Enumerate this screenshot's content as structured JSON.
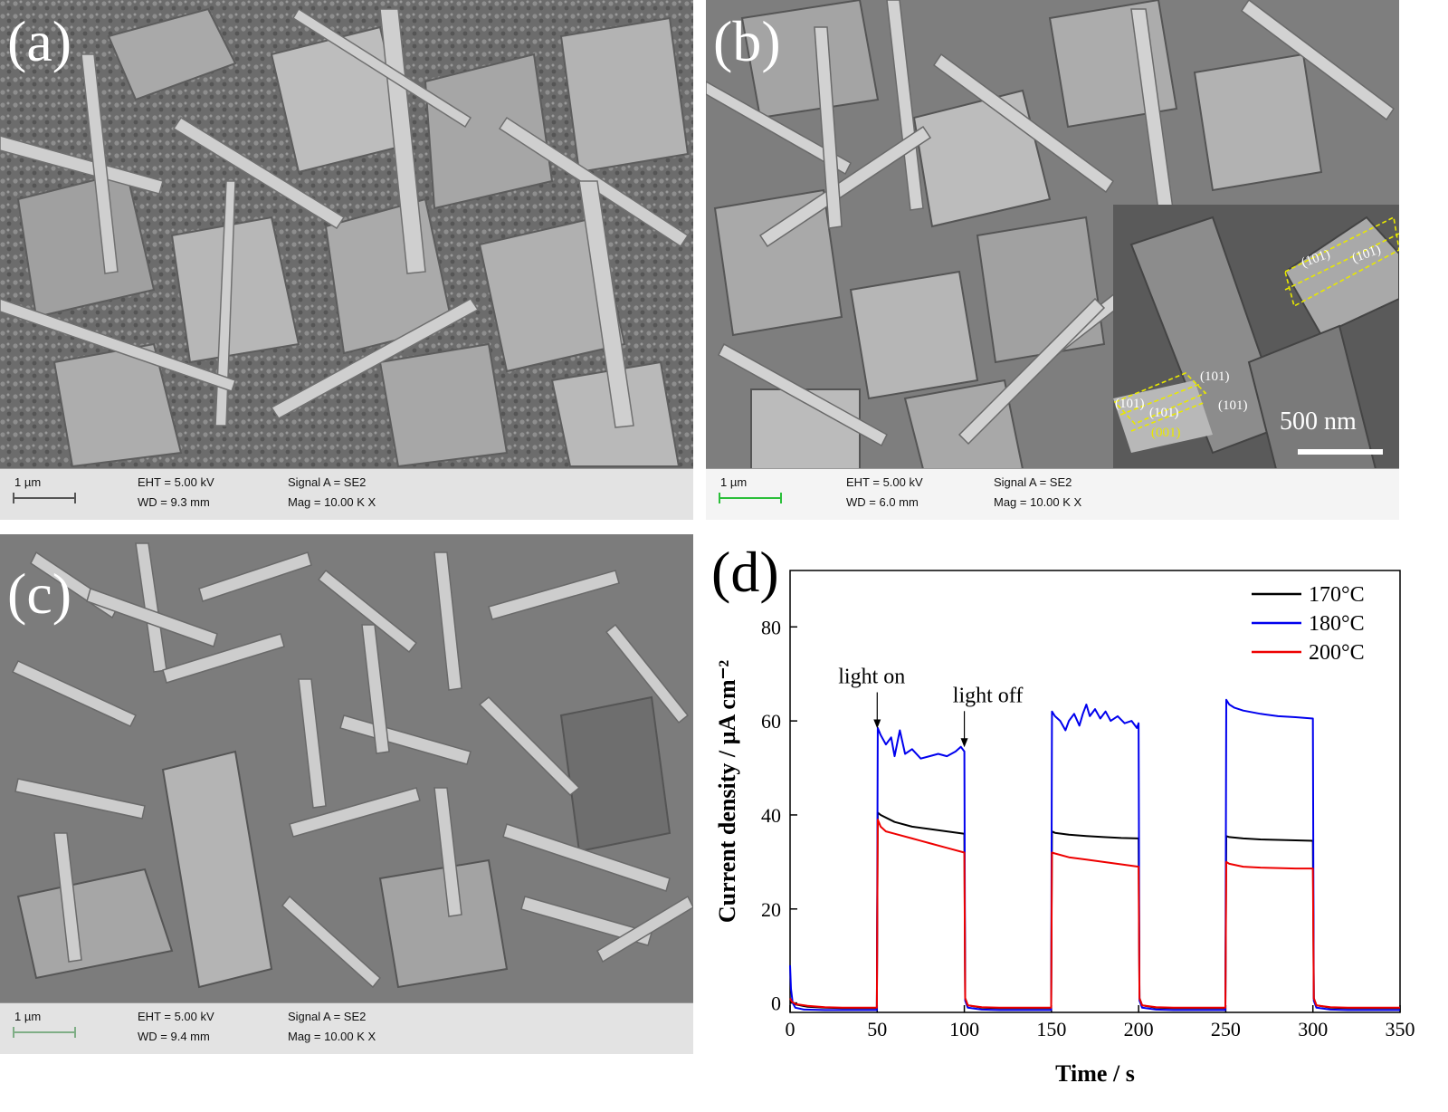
{
  "panels": {
    "a": {
      "label": "(a)",
      "info": {
        "scale": "1 µm",
        "eht": "EHT =  5.00 kV",
        "wd": "WD =  9.3 mm",
        "signal": "Signal A = SE2",
        "mag": "Mag =   10.00 K X"
      }
    },
    "b": {
      "label": "(b)",
      "info": {
        "scale": "1 µm",
        "eht": "EHT =  5.00 kV",
        "wd": "WD =  6.0 mm",
        "signal": "Signal A = SE2",
        "mag": "Mag =   10.00 K X"
      },
      "inset": {
        "scale": "500 nm",
        "facets": [
          "(101)",
          "(101)",
          "(101)",
          "(101)",
          "(101)",
          "(101)",
          "(001)"
        ]
      }
    },
    "c": {
      "label": "(c)",
      "info": {
        "scale": "1 µm",
        "eht": "EHT =  5.00 kV",
        "wd": "WD =  9.4 mm",
        "signal": "Signal A = SE2",
        "mag": "Mag =   10.00 K X"
      }
    },
    "d": {
      "label": "(d)"
    }
  },
  "chart_data": {
    "type": "line",
    "title": "",
    "xlabel": "Time / s",
    "ylabel": "Current density / µA cm⁻²",
    "xlim": [
      0,
      350
    ],
    "ylim": [
      -2,
      92
    ],
    "xticks": [
      0,
      50,
      100,
      150,
      200,
      250,
      300,
      350
    ],
    "yticks": [
      0,
      20,
      40,
      60,
      80
    ],
    "legend_position": "top-right",
    "grid": false,
    "annotations": [
      {
        "text": "light on",
        "x": 50,
        "y": 58
      },
      {
        "text": "light off",
        "x": 100,
        "y": 54
      }
    ],
    "series": [
      {
        "name": "170°C",
        "color": "#000000",
        "x": [
          0,
          1,
          3,
          10,
          20,
          30,
          40,
          49.8,
          50.3,
          52,
          60,
          70,
          80,
          90,
          100,
          100.5,
          102,
          110,
          120,
          130,
          140,
          149.8,
          150.3,
          152,
          160,
          170,
          180,
          190,
          200,
          200.5,
          202,
          210,
          220,
          230,
          240,
          249.8,
          250.3,
          252,
          260,
          270,
          280,
          290,
          300,
          300.5,
          302,
          310,
          320,
          330,
          340,
          350
        ],
        "y": [
          0.5,
          0.2,
          -0.3,
          -0.8,
          -1.0,
          -1.1,
          -1.1,
          -1.1,
          40.5,
          40.0,
          38.5,
          37.5,
          37.0,
          36.5,
          36.0,
          1.0,
          -0.5,
          -1.0,
          -1.1,
          -1.1,
          -1.1,
          -1.1,
          36.5,
          36.2,
          35.8,
          35.5,
          35.3,
          35.1,
          35.0,
          1.0,
          -0.5,
          -1.0,
          -1.1,
          -1.1,
          -1.1,
          -1.1,
          35.5,
          35.3,
          35.0,
          34.8,
          34.7,
          34.6,
          34.5,
          1.0,
          -0.5,
          -1.0,
          -1.1,
          -1.1,
          -1.1,
          -1.1
        ]
      },
      {
        "name": "180°C",
        "color": "#0000ee",
        "x": [
          0,
          0.5,
          1.5,
          3,
          8,
          20,
          35,
          49.8,
          50.3,
          52,
          55,
          58,
          60,
          63,
          66,
          70,
          75,
          80,
          85,
          90,
          95,
          98,
          100,
          100.5,
          102,
          110,
          120,
          130,
          140,
          149.8,
          150.3,
          152,
          155,
          158,
          160,
          163,
          166,
          168,
          170,
          172,
          175,
          178,
          181,
          184,
          188,
          192,
          196,
          199,
          200,
          200.5,
          202,
          210,
          220,
          230,
          240,
          249.8,
          250.3,
          252,
          255,
          260,
          270,
          280,
          290,
          300,
          300.5,
          302,
          310,
          320,
          330,
          340,
          350
        ],
        "y": [
          8.0,
          3.0,
          0.0,
          -1.0,
          -1.4,
          -1.5,
          -1.5,
          -1.5,
          58.5,
          57.0,
          55.0,
          56.5,
          52.5,
          58.0,
          53.0,
          54.0,
          52.0,
          52.5,
          53.0,
          52.5,
          53.5,
          54.5,
          53.5,
          0.5,
          -1.0,
          -1.4,
          -1.5,
          -1.5,
          -1.5,
          -1.5,
          62.0,
          61.0,
          60.0,
          58.0,
          60.0,
          61.5,
          59.0,
          61.5,
          63.5,
          61.0,
          62.5,
          60.5,
          62.0,
          60.0,
          61.0,
          59.5,
          60.0,
          58.5,
          59.5,
          0.5,
          -1.0,
          -1.4,
          -1.5,
          -1.5,
          -1.5,
          -1.5,
          64.5,
          63.5,
          62.8,
          62.2,
          61.5,
          61.0,
          60.8,
          60.5,
          0.5,
          -1.0,
          -1.4,
          -1.5,
          -1.5,
          -1.5,
          -1.5
        ]
      },
      {
        "name": "200°C",
        "color": "#ee0000",
        "x": [
          0,
          1,
          3,
          10,
          20,
          30,
          40,
          49.8,
          50.3,
          52,
          55,
          60,
          70,
          80,
          90,
          100,
          100.5,
          102,
          110,
          120,
          130,
          140,
          149.8,
          150.3,
          152,
          160,
          170,
          180,
          190,
          200,
          200.5,
          202,
          210,
          220,
          230,
          240,
          249.8,
          250.3,
          252,
          260,
          270,
          280,
          290,
          300,
          300.5,
          302,
          310,
          320,
          330,
          340,
          350
        ],
        "y": [
          1.0,
          0.3,
          -0.2,
          -0.6,
          -0.9,
          -1.0,
          -1.0,
          -1.0,
          39.0,
          37.5,
          36.5,
          36.0,
          35.0,
          34.0,
          33.0,
          32.0,
          1.0,
          -0.5,
          -0.9,
          -1.0,
          -1.0,
          -1.0,
          -1.0,
          32.0,
          31.8,
          31.0,
          30.5,
          30.0,
          29.5,
          29.0,
          1.0,
          -0.5,
          -0.9,
          -1.0,
          -1.0,
          -1.0,
          -1.0,
          30.0,
          29.6,
          29.0,
          28.8,
          28.7,
          28.6,
          28.6,
          1.0,
          -0.5,
          -0.9,
          -1.0,
          -1.0,
          -1.0,
          -1.0
        ]
      }
    ]
  }
}
